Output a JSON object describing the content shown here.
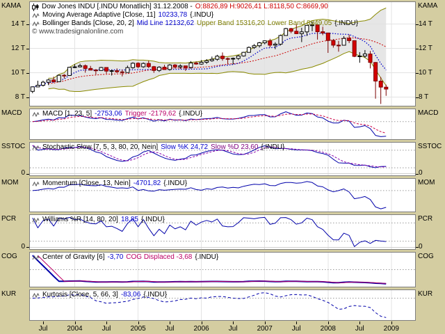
{
  "window": {
    "app": "tradesignalonline chart"
  },
  "panels": {
    "price": {
      "edge_label": "KAMA",
      "title": "Dow Jones INDU [.INDU  Monatlich] 31.12.2008 -",
      "ohlc": "O:8826,89 H:9026,41 L:8118,50 C:8669,90",
      "kama_label": "Moving Average Adaptive [Close, 11]",
      "kama_value": "10233,78",
      "kama_suffix": "{.INDU}",
      "boll_label": "Bollinger Bands [Close, 20, 2]",
      "boll_mid": "Mid Line 12132,62",
      "boll_upper": "Upper Band 15316,20",
      "boll_lower": "Lower Band 8949,05",
      "boll_suffix": "{.INDU}",
      "watermark": "© www.tradesignalonline.com"
    },
    "macd": {
      "edge_label": "MACD",
      "label": "MACD [1, 23, 5]",
      "value": "-2753,06",
      "value2": "Trigger -2179,62",
      "suffix": "{.INDU}"
    },
    "sstoc": {
      "edge_label": "SSTOC",
      "label": "Stochastic Slow [7, 5, 3, 80, 20, Nein]",
      "value": "Slow %K 24,72",
      "value2": "Slow %D 23,60",
      "suffix": "{.INDU}"
    },
    "mom": {
      "edge_label": "MOM",
      "label": "Momentum [Close, 13, Nein]",
      "value": "-4701,82",
      "suffix": "{.INDU}"
    },
    "pcr": {
      "edge_label": "PCR",
      "label": "Williams %R [14, 80, 20]",
      "value": "18,85",
      "suffix": "{.INDU}"
    },
    "cog": {
      "edge_label": "COG",
      "label": "Center of Gravity [6]",
      "value": "-3,70",
      "value2": "COG Displaced -3,68",
      "suffix": "{.INDU}"
    },
    "kur": {
      "edge_label": "KUR",
      "label": "Kurtosis [Close, 5, 66, 3]",
      "value": "-83,06",
      "suffix": "{.INDU}"
    }
  },
  "axis": {
    "price_ticks": [
      {
        "value": 14000,
        "label": "14 T"
      },
      {
        "value": 12000,
        "label": "12 T"
      },
      {
        "value": 10000,
        "label": "10 T"
      },
      {
        "value": 8000,
        "label": "8 T"
      }
    ],
    "zero_label": "0"
  },
  "colors": {
    "background_margin": "#d4cda1",
    "panel_bg": "#ffffff",
    "grid": "#e3e3e3",
    "candle_up_fill": "#ffffff",
    "candle_up_stroke": "#000000",
    "candle_down_fill": "#d40000",
    "candle_down_stroke": "#7a0000",
    "bollinger_band": "#8a8a00",
    "bollinger_fill": "#e0e0e0",
    "bollinger_mid": "#cc0000",
    "kama_line": "#0000cc",
    "indicator_blue": "#0000aa",
    "indicator_red": "#cc0044",
    "indicator_purple": "#8800aa",
    "indicator_magenta": "#bb0066",
    "value_blue": "#0000cc",
    "value_red": "#cc0000",
    "value_olive": "#7d7d00"
  },
  "chart_data": {
    "type": "candlestick",
    "symbol": ".INDU",
    "name": "Dow Jones INDU",
    "interval": "Monatlich",
    "last_date": "31.12.2008",
    "first_month": "2003-05",
    "months_total": 73,
    "x_ticks": [
      {
        "i": 2,
        "label": "Jul"
      },
      {
        "i": 8,
        "label": "2004"
      },
      {
        "i": 14,
        "label": "Jul"
      },
      {
        "i": 20,
        "label": "2005"
      },
      {
        "i": 26,
        "label": "Jul"
      },
      {
        "i": 32,
        "label": "2006"
      },
      {
        "i": 38,
        "label": "Jul"
      },
      {
        "i": 44,
        "label": "2007"
      },
      {
        "i": 50,
        "label": "Jul"
      },
      {
        "i": 56,
        "label": "2008"
      },
      {
        "i": 62,
        "label": "Jul"
      },
      {
        "i": 68,
        "label": "2009"
      }
    ],
    "price_range": [
      7300,
      15800
    ],
    "candles_ohlc": [
      [
        8480,
        8869,
        8331,
        8850
      ],
      [
        8850,
        9353,
        8871,
        8985
      ],
      [
        8985,
        9361,
        8872,
        9234
      ],
      [
        9234,
        9499,
        8997,
        9416
      ],
      [
        9416,
        9686,
        9230,
        9275
      ],
      [
        9275,
        9856,
        9265,
        9801
      ],
      [
        9801,
        9903,
        9554,
        9782
      ],
      [
        9782,
        10494,
        9782,
        10454
      ],
      [
        10454,
        10702,
        10384,
        10488
      ],
      [
        10488,
        10753,
        10440,
        10584
      ],
      [
        10584,
        10691,
        10007,
        10358
      ],
      [
        10358,
        10571,
        10204,
        10226
      ],
      [
        10226,
        10310,
        9852,
        10188
      ],
      [
        10188,
        10488,
        10160,
        10435
      ],
      [
        10435,
        10464,
        9932,
        10140
      ],
      [
        10140,
        10269,
        9783,
        10174
      ],
      [
        10174,
        10364,
        9977,
        10080
      ],
      [
        10080,
        10262,
        9708,
        10027
      ],
      [
        10027,
        10590,
        10027,
        10428
      ],
      [
        10428,
        10868,
        10336,
        10783
      ],
      [
        10783,
        10868,
        10368,
        10490
      ],
      [
        10490,
        10853,
        10407,
        10766
      ],
      [
        10766,
        10985,
        10386,
        10504
      ],
      [
        10504,
        10571,
        10000,
        10193
      ],
      [
        10193,
        10542,
        10075,
        10467
      ],
      [
        10467,
        10657,
        10240,
        10275
      ],
      [
        10275,
        10718,
        10175,
        10641
      ],
      [
        10641,
        10720,
        10350,
        10482
      ],
      [
        10482,
        10701,
        10319,
        10569
      ],
      [
        10569,
        10569,
        10156,
        10440
      ],
      [
        10440,
        10960,
        10347,
        10806
      ],
      [
        10806,
        10941,
        10662,
        10718
      ],
      [
        10718,
        11047,
        10661,
        10865
      ],
      [
        10865,
        11125,
        10737,
        10993
      ],
      [
        10993,
        11335,
        10913,
        11109
      ],
      [
        11109,
        11475,
        10993,
        11367
      ],
      [
        11367,
        11670,
        10998,
        11168
      ],
      [
        11168,
        11257,
        10699,
        11150
      ],
      [
        11150,
        11257,
        10683,
        11186
      ],
      [
        11186,
        11477,
        11040,
        11381
      ],
      [
        11381,
        11723,
        11331,
        11679
      ],
      [
        11679,
        12167,
        11651,
        12080
      ],
      [
        12080,
        12361,
        11965,
        12222
      ],
      [
        12222,
        12530,
        12072,
        12463
      ],
      [
        12463,
        12657,
        12337,
        12622
      ],
      [
        12622,
        12796,
        12089,
        12269
      ],
      [
        12269,
        12511,
        11940,
        12354
      ],
      [
        12354,
        13136,
        12243,
        13063
      ],
      [
        13063,
        13692,
        13041,
        13628
      ],
      [
        13628,
        13692,
        13251,
        13409
      ],
      [
        13409,
        14022,
        13184,
        13212
      ],
      [
        13212,
        13696,
        12518,
        13358
      ],
      [
        13358,
        13924,
        13021,
        13896
      ],
      [
        13896,
        14198,
        13407,
        13930
      ],
      [
        13930,
        13930,
        12724,
        13372
      ],
      [
        13372,
        13780,
        13092,
        13265
      ],
      [
        13265,
        13280,
        11635,
        12650
      ],
      [
        12650,
        12767,
        12069,
        12266
      ],
      [
        12266,
        12622,
        11732,
        12263
      ],
      [
        12263,
        13010,
        12266,
        12820
      ],
      [
        12820,
        13137,
        12442,
        12638
      ],
      [
        12638,
        12638,
        11287,
        11350
      ],
      [
        11350,
        11698,
        10828,
        11378
      ],
      [
        11378,
        11867,
        11227,
        11544
      ],
      [
        11544,
        11790,
        10366,
        10851
      ],
      [
        10851,
        10882,
        7882,
        9325
      ],
      [
        9325,
        9654,
        7449,
        8829
      ],
      [
        8826.89,
        9026.41,
        8118.5,
        8669.9
      ]
    ],
    "indicator_params": {
      "moving_average_adaptive": [
        11
      ],
      "bollinger_bands": [
        20,
        2
      ],
      "macd": [
        1,
        23,
        5
      ],
      "stochastic_slow": [
        7,
        5,
        3,
        80,
        20
      ],
      "momentum": [
        13
      ],
      "williams_r": [
        14,
        80,
        20
      ],
      "center_of_gravity": [
        6
      ],
      "kurtosis": [
        5,
        66,
        3
      ]
    },
    "indicator_last_values": {
      "kama": 10233.78,
      "boll_mid": 12132.62,
      "boll_upper": 15316.2,
      "boll_lower": 8949.05,
      "macd": -2753.06,
      "macd_trigger": -2179.62,
      "slow_k": 24.72,
      "slow_d": 23.6,
      "momentum": -4701.82,
      "williams_r": 18.85,
      "cog": -3.7,
      "cog_displaced": -3.68,
      "kurtosis": -83.06
    }
  }
}
